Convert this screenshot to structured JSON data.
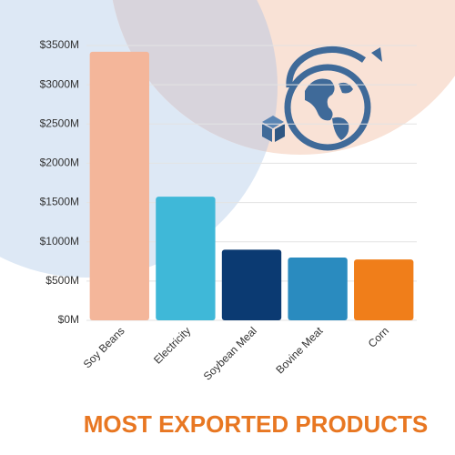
{
  "chart_data": {
    "type": "bar",
    "title": "MOST EXPORTED PRODUCTS",
    "categories": [
      "Soy Beans",
      "Electricity",
      "Soybean Meal",
      "Bovine Meat",
      "Corn"
    ],
    "values": [
      3420,
      1575,
      900,
      800,
      775
    ],
    "colors": [
      "#f4b69a",
      "#3fb8d8",
      "#0b3a72",
      "#2a8bbf",
      "#f07e1a"
    ],
    "ylim": [
      0,
      3500
    ],
    "yticks": [
      {
        "value": 0,
        "label": "$0M"
      },
      {
        "value": 500,
        "label": "$500M"
      },
      {
        "value": 1000,
        "label": "$1000M"
      },
      {
        "value": 1500,
        "label": "$1500M"
      },
      {
        "value": 2000,
        "label": "$2000M"
      },
      {
        "value": 2500,
        "label": "$2500M"
      },
      {
        "value": 3000,
        "label": "$3000M"
      },
      {
        "value": 3500,
        "label": "$3500M"
      }
    ],
    "grid": true
  }
}
